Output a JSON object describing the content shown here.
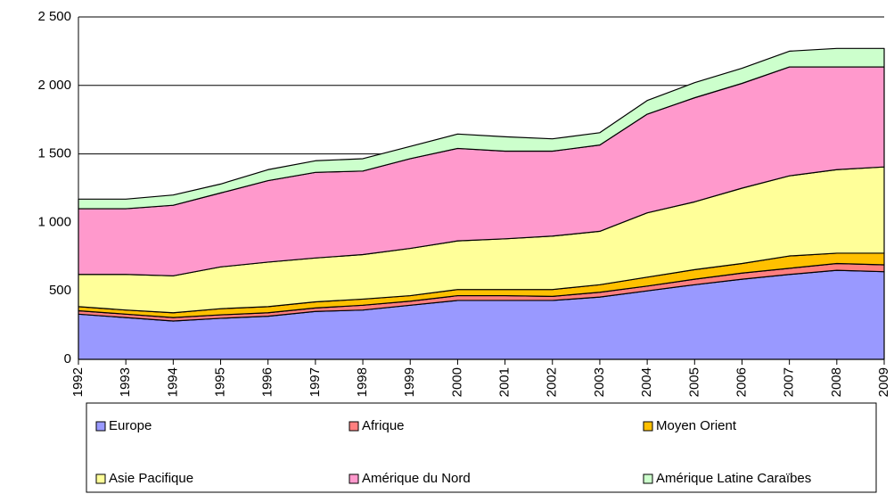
{
  "chart_data": {
    "type": "stacked-area",
    "categories": [
      "1992",
      "1993",
      "1994",
      "1995",
      "1996",
      "1997",
      "1998",
      "1999",
      "2000",
      "2001",
      "2002",
      "2003",
      "2004",
      "2005",
      "2006",
      "2007",
      "2008",
      "2009"
    ],
    "series": [
      {
        "name": "Europe",
        "color": "#9999ff",
        "values": [
          330,
          305,
          280,
          300,
          315,
          350,
          360,
          395,
          430,
          430,
          430,
          455,
          500,
          545,
          585,
          620,
          650,
          640
        ]
      },
      {
        "name": "Afrique",
        "color": "#ff7f7f",
        "values": [
          25,
          25,
          25,
          25,
          25,
          25,
          35,
          30,
          35,
          35,
          30,
          35,
          35,
          40,
          45,
          45,
          50,
          50
        ]
      },
      {
        "name": "Moyen Orient",
        "color": "#ffc000",
        "values": [
          30,
          30,
          35,
          45,
          45,
          45,
          45,
          40,
          45,
          45,
          50,
          55,
          65,
          70,
          70,
          90,
          75,
          85
        ]
      },
      {
        "name": "Asie Pacifique",
        "color": "#ffff99",
        "values": [
          235,
          260,
          270,
          305,
          325,
          320,
          325,
          345,
          355,
          370,
          390,
          390,
          470,
          495,
          550,
          585,
          610,
          630
        ]
      },
      {
        "name": "Amérique du Nord",
        "color": "#ff99cc",
        "values": [
          480,
          480,
          515,
          540,
          595,
          625,
          610,
          655,
          675,
          640,
          620,
          630,
          720,
          760,
          765,
          795,
          750,
          730
        ]
      },
      {
        "name": "Amérique Latine Caraïbes",
        "color": "#ccffcc",
        "values": [
          70,
          70,
          75,
          65,
          80,
          85,
          90,
          90,
          105,
          105,
          90,
          90,
          100,
          110,
          110,
          115,
          135,
          135
        ]
      }
    ],
    "ylim": [
      0,
      2500
    ],
    "yticks": [
      0,
      500,
      {
        "value": 1000,
        "label": "1 000"
      },
      {
        "value": 1500,
        "label": "1 500"
      },
      {
        "value": 2000,
        "label": "2 000"
      },
      {
        "value": 2500,
        "label": "2 500"
      }
    ],
    "grid": true,
    "legend": "bottom"
  }
}
